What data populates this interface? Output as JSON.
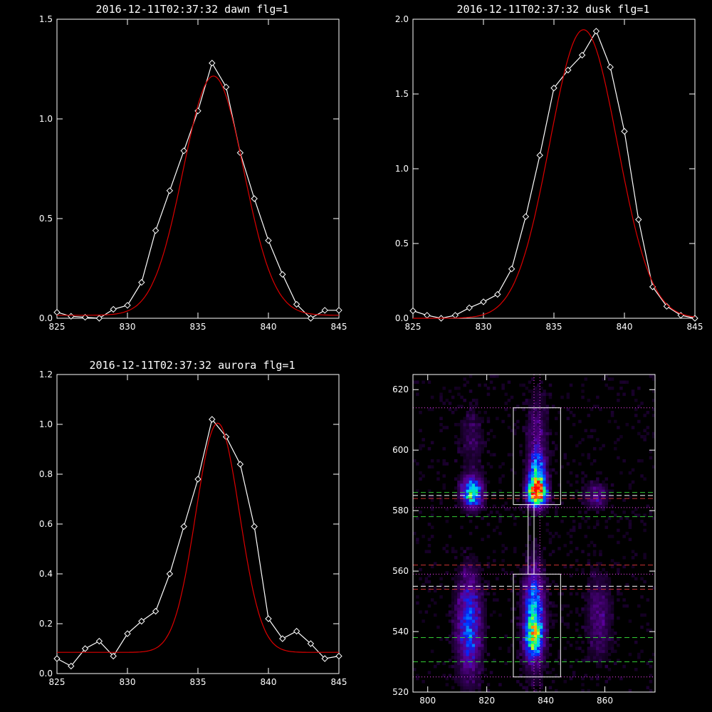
{
  "chart_data": [
    {
      "id": "dawn",
      "type": "line",
      "title": "2016-12-11T02:37:32 dawn flg=1",
      "xlim": [
        825,
        845
      ],
      "ylim": [
        0,
        1.5
      ],
      "xticks": [
        "825",
        "830",
        "835",
        "840",
        "845"
      ],
      "yticks": [
        "0.0",
        "0.5",
        "1.0",
        "1.5"
      ],
      "grid": false,
      "series": [
        {
          "role": "observed",
          "color": "#ffffff",
          "marker": "diamond",
          "x": [
            825,
            826,
            827,
            828,
            829,
            830,
            831,
            832,
            833,
            834,
            835,
            836,
            837,
            838,
            839,
            840,
            841,
            842,
            843,
            844,
            845
          ],
          "y": [
            0.03,
            0.01,
            0.005,
            0.0,
            0.045,
            0.065,
            0.18,
            0.44,
            0.64,
            0.84,
            1.04,
            1.28,
            1.16,
            0.83,
            0.6,
            0.39,
            0.22,
            0.07,
            0.0,
            0.04,
            0.04
          ]
        },
        {
          "role": "fit",
          "color": "#dd0000",
          "peak": 1.2,
          "center": 836.1,
          "sigma": 2.15,
          "baseline": 0.015,
          "x_range": [
            825,
            845
          ]
        }
      ]
    },
    {
      "id": "dusk",
      "type": "line",
      "title": "2016-12-11T02:37:32 dusk flg=1",
      "xlim": [
        825,
        845
      ],
      "ylim": [
        0,
        2.0
      ],
      "xticks": [
        "825",
        "830",
        "835",
        "840",
        "845"
      ],
      "yticks": [
        "0.0",
        "0.5",
        "1.0",
        "1.5",
        "2.0"
      ],
      "grid": false,
      "series": [
        {
          "role": "observed",
          "color": "#ffffff",
          "marker": "diamond",
          "x": [
            825,
            826,
            827,
            828,
            829,
            830,
            831,
            832,
            833,
            834,
            835,
            836,
            837,
            838,
            839,
            840,
            841,
            842,
            843,
            844,
            845
          ],
          "y": [
            0.05,
            0.02,
            0.0,
            0.02,
            0.07,
            0.11,
            0.16,
            0.33,
            0.68,
            1.09,
            1.54,
            1.66,
            1.76,
            1.92,
            1.68,
            1.25,
            0.66,
            0.21,
            0.08,
            0.02,
            0.0
          ]
        },
        {
          "role": "fit",
          "color": "#dd0000",
          "peak": 1.93,
          "center": 837.1,
          "sigma": 2.4,
          "baseline": 0.0,
          "x_range": [
            825,
            845
          ]
        }
      ]
    },
    {
      "id": "aurora",
      "type": "line",
      "title": "2016-12-11T02:37:32 aurora flg=1",
      "xlim": [
        825,
        845
      ],
      "ylim": [
        0,
        1.2
      ],
      "xticks": [
        "825",
        "830",
        "835",
        "840",
        "845"
      ],
      "yticks": [
        "0.0",
        "0.2",
        "0.4",
        "0.6",
        "0.8",
        "1.0",
        "1.2"
      ],
      "grid": false,
      "series": [
        {
          "role": "observed",
          "color": "#ffffff",
          "marker": "diamond",
          "x": [
            825,
            826,
            827,
            828,
            829,
            830,
            831,
            832,
            833,
            834,
            835,
            836,
            837,
            838,
            839,
            840,
            841,
            842,
            843,
            844,
            845
          ],
          "y": [
            0.06,
            0.03,
            0.1,
            0.13,
            0.07,
            0.16,
            0.21,
            0.25,
            0.4,
            0.59,
            0.78,
            1.02,
            0.95,
            0.84,
            0.59,
            0.22,
            0.14,
            0.17,
            0.12,
            0.06,
            0.07
          ]
        },
        {
          "role": "fit",
          "color": "#dd0000",
          "peak": 0.92,
          "center": 836.4,
          "sigma": 1.55,
          "baseline": 0.085,
          "x_range": [
            825,
            845
          ]
        }
      ]
    },
    {
      "id": "image",
      "type": "heatmap",
      "title": "",
      "xlim": [
        795,
        877
      ],
      "ylim": [
        520,
        625
      ],
      "xticks": [
        "800",
        "820",
        "840",
        "860"
      ],
      "yticks": [
        "520",
        "540",
        "560",
        "580",
        "600",
        "620"
      ],
      "colormap": "rainbow-on-black",
      "blobs": [
        {
          "x": 815,
          "y": 586,
          "sx": 2.5,
          "sy": 3.5,
          "amp": 0.62
        },
        {
          "x": 837,
          "y": 586,
          "sx": 2.2,
          "sy": 3.2,
          "amp": 1.0
        },
        {
          "x": 837,
          "y": 593,
          "sx": 2.0,
          "sy": 5,
          "amp": 0.45
        },
        {
          "x": 857,
          "y": 585,
          "sx": 3,
          "sy": 3,
          "amp": 0.22
        },
        {
          "x": 836,
          "y": 545,
          "sx": 2.5,
          "sy": 11,
          "amp": 0.55
        },
        {
          "x": 836,
          "y": 538,
          "sx": 2.0,
          "sy": 4,
          "amp": 0.35
        },
        {
          "x": 814,
          "y": 542,
          "sx": 3.0,
          "sy": 12,
          "amp": 0.42
        },
        {
          "x": 858,
          "y": 545,
          "sx": 3,
          "sy": 10,
          "amp": 0.2
        },
        {
          "x": 815,
          "y": 604,
          "sx": 3,
          "sy": 8,
          "amp": 0.12
        },
        {
          "x": 837,
          "y": 606,
          "sx": 2.5,
          "sy": 9,
          "amp": 0.18
        }
      ],
      "boxes": [
        {
          "x0": 829,
          "x1": 845,
          "y0": 582,
          "y1": 614,
          "color": "#ffffff"
        },
        {
          "x0": 829,
          "x1": 845,
          "y0": 525,
          "y1": 559,
          "color": "#ffffff"
        },
        {
          "x0": 834,
          "x1": 836,
          "y0": 559,
          "y1": 582,
          "color": "#ffffff"
        }
      ],
      "hlines": [
        {
          "y": 614,
          "color": "#ff44ff",
          "style": "dotted"
        },
        {
          "y": 586,
          "color": "#33cc33",
          "style": "dashed"
        },
        {
          "y": 585,
          "color": "#ffffff",
          "style": "dashed"
        },
        {
          "y": 584,
          "color": "#cc3333",
          "style": "dashed"
        },
        {
          "y": 581,
          "color": "#ff44ff",
          "style": "dotted"
        },
        {
          "y": 578,
          "color": "#33cc33",
          "style": "dashed"
        },
        {
          "y": 562,
          "color": "#cc3333",
          "style": "dashed"
        },
        {
          "y": 559,
          "color": "#ff44ff",
          "style": "dotted"
        },
        {
          "y": 555,
          "color": "#ffffff",
          "style": "dashed"
        },
        {
          "y": 554,
          "color": "#cc3333",
          "style": "dashed"
        },
        {
          "y": 538,
          "color": "#33cc33",
          "style": "dashed"
        },
        {
          "y": 530,
          "color": "#33cc33",
          "style": "dashed"
        },
        {
          "y": 525,
          "color": "#ff44ff",
          "style": "dotted"
        }
      ],
      "vlines": [
        {
          "x": 836.0,
          "color": "#ff44ff",
          "style": "dotted"
        },
        {
          "x": 838.0,
          "color": "#ff44ff",
          "style": "dotted"
        }
      ]
    }
  ]
}
